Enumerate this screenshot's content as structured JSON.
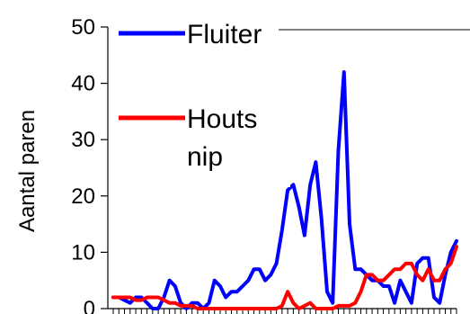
{
  "chart_data": {
    "type": "line",
    "title": "",
    "xlabel": "",
    "ylabel": "Aantal paren",
    "ylim": [
      0,
      50
    ],
    "yticks": [
      "0",
      "10",
      "20",
      "30",
      "40",
      "50"
    ],
    "ytick_values": [
      0,
      10,
      20,
      30,
      40,
      50
    ],
    "x_count": 62,
    "grid": false,
    "legend_position": "top-left",
    "series": [
      {
        "name": "Fluiter",
        "color": "#0000ff",
        "values": [
          2,
          2,
          1.5,
          1,
          2,
          2,
          1,
          0,
          0,
          2,
          5,
          4,
          1,
          0,
          1,
          1,
          0,
          1,
          5,
          4,
          2,
          3,
          3,
          4,
          5,
          7,
          7,
          5,
          6,
          8,
          14,
          21,
          22,
          18,
          13,
          22,
          26,
          16,
          3,
          1,
          28,
          42,
          15,
          7,
          7,
          6,
          5,
          5,
          4,
          4,
          1,
          5,
          3,
          1,
          8,
          9,
          9,
          2,
          1,
          6,
          10,
          12
        ]
      },
      {
        "name": "Houts nip",
        "color": "#ff0000",
        "values": [
          2,
          2,
          2,
          2,
          1.5,
          1.5,
          2,
          2,
          2,
          1.5,
          1,
          1,
          0.5,
          0.5,
          0.5,
          0,
          0,
          0,
          0,
          0,
          0,
          0,
          0,
          0,
          0,
          0,
          0,
          0,
          0,
          0,
          0.5,
          3,
          1,
          0,
          0.5,
          1,
          0,
          0,
          0,
          0,
          0.5,
          0.5,
          0.5,
          1,
          3,
          6,
          6,
          5,
          5,
          6,
          7,
          7,
          8,
          8,
          6,
          5,
          7,
          5,
          5,
          7,
          8,
          11
        ]
      }
    ]
  }
}
